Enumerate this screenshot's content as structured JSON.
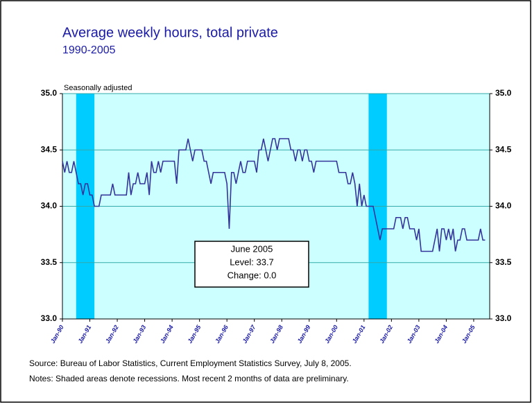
{
  "chart_data": {
    "type": "line",
    "title": "Average weekly hours, total private",
    "subtitle": "1990-2005",
    "y_label": "Seasonally adjusted",
    "categories": [
      "Jan-90",
      null,
      null,
      null,
      null,
      null,
      null,
      null,
      null,
      null,
      null,
      null,
      "Jan-91",
      null,
      null,
      null,
      null,
      null,
      null,
      null,
      null,
      null,
      null,
      null,
      "Jan-92",
      null,
      null,
      null,
      null,
      null,
      null,
      null,
      null,
      null,
      null,
      null,
      "Jan-93",
      null,
      null,
      null,
      null,
      null,
      null,
      null,
      null,
      null,
      null,
      null,
      "Jan-94",
      null,
      null,
      null,
      null,
      null,
      null,
      null,
      null,
      null,
      null,
      null,
      "Jan-95",
      null,
      null,
      null,
      null,
      null,
      null,
      null,
      null,
      null,
      null,
      null,
      "Jan-96",
      null,
      null,
      null,
      null,
      null,
      null,
      null,
      null,
      null,
      null,
      null,
      "Jan-97",
      null,
      null,
      null,
      null,
      null,
      null,
      null,
      null,
      null,
      null,
      null,
      "Jan-98",
      null,
      null,
      null,
      null,
      null,
      null,
      null,
      null,
      null,
      null,
      null,
      "Jan-99",
      null,
      null,
      null,
      null,
      null,
      null,
      null,
      null,
      null,
      null,
      null,
      "Jan-00",
      null,
      null,
      null,
      null,
      null,
      null,
      null,
      null,
      null,
      null,
      null,
      "Jan-01",
      null,
      null,
      null,
      null,
      null,
      null,
      null,
      null,
      null,
      null,
      null,
      "Jan-02",
      null,
      null,
      null,
      null,
      null,
      null,
      null,
      null,
      null,
      null,
      null,
      "Jan-03",
      null,
      null,
      null,
      null,
      null,
      null,
      null,
      null,
      null,
      null,
      null,
      "Jan-04",
      null,
      null,
      null,
      null,
      null,
      null,
      null,
      null,
      null,
      null,
      null,
      "Jan-05",
      null,
      null,
      null,
      null,
      null
    ],
    "series": [
      {
        "color": "#333399",
        "values": [
          34.4,
          34.3,
          34.4,
          34.3,
          34.3,
          34.4,
          34.3,
          34.2,
          34.2,
          34.1,
          34.2,
          34.2,
          34.1,
          34.1,
          34.0,
          34.0,
          34.0,
          34.1,
          34.1,
          34.1,
          34.1,
          34.1,
          34.2,
          34.1,
          34.1,
          34.1,
          34.1,
          34.1,
          34.1,
          34.3,
          34.1,
          34.2,
          34.2,
          34.3,
          34.2,
          34.2,
          34.2,
          34.3,
          34.1,
          34.4,
          34.3,
          34.3,
          34.4,
          34.3,
          34.4,
          34.4,
          34.4,
          34.4,
          34.4,
          34.4,
          34.2,
          34.5,
          34.5,
          34.5,
          34.5,
          34.6,
          34.5,
          34.4,
          34.5,
          34.5,
          34.5,
          34.5,
          34.4,
          34.4,
          34.3,
          34.2,
          34.3,
          34.3,
          34.3,
          34.3,
          34.3,
          34.3,
          34.2,
          33.8,
          34.3,
          34.3,
          34.2,
          34.3,
          34.4,
          34.3,
          34.3,
          34.4,
          34.4,
          34.4,
          34.4,
          34.3,
          34.5,
          34.5,
          34.6,
          34.5,
          34.4,
          34.5,
          34.6,
          34.6,
          34.5,
          34.6,
          34.6,
          34.6,
          34.6,
          34.6,
          34.5,
          34.5,
          34.4,
          34.5,
          34.5,
          34.4,
          34.5,
          34.5,
          34.4,
          34.4,
          34.3,
          34.4,
          34.4,
          34.4,
          34.4,
          34.4,
          34.4,
          34.4,
          34.4,
          34.4,
          34.4,
          34.3,
          34.3,
          34.3,
          34.3,
          34.2,
          34.2,
          34.3,
          34.2,
          34.0,
          34.2,
          34.0,
          34.1,
          34.0,
          34.0,
          34.0,
          34.0,
          33.9,
          33.8,
          33.7,
          33.8,
          33.8,
          33.8,
          33.8,
          33.8,
          33.8,
          33.9,
          33.9,
          33.9,
          33.8,
          33.9,
          33.9,
          33.8,
          33.8,
          33.8,
          33.7,
          33.8,
          33.6,
          33.6,
          33.6,
          33.6,
          33.6,
          33.6,
          33.7,
          33.8,
          33.6,
          33.8,
          33.8,
          33.7,
          33.8,
          33.7,
          33.8,
          33.6,
          33.7,
          33.7,
          33.8,
          33.8,
          33.7,
          33.7,
          33.7,
          33.7,
          33.7,
          33.7,
          33.8,
          33.7,
          33.7
        ]
      }
    ],
    "ylim": [
      33,
      35
    ],
    "yticks": [
      {
        "value": 33,
        "label": "33.0"
      },
      {
        "value": 33.5,
        "label": "33.5"
      },
      {
        "value": 34,
        "label": "34.0"
      },
      {
        "value": 34.5,
        "label": "34.5"
      },
      {
        "value": 35,
        "label": "35.0"
      }
    ],
    "y2lim": [
      33,
      35
    ],
    "y2ticks": [
      {
        "value": 33,
        "label": "33.0"
      },
      {
        "value": 33.5,
        "label": "33.5"
      },
      {
        "value": 34,
        "label": "34.0"
      },
      {
        "value": 34.5,
        "label": "34.5"
      },
      {
        "value": 35,
        "label": "35.0"
      }
    ],
    "grid": true,
    "shaded_ranges": [
      [
        6,
        14
      ],
      [
        134,
        142
      ]
    ],
    "annotation": [
      "June 2005",
      "Level: 33.7",
      "Change: 0.0"
    ],
    "source": "Source:  Bureau of Labor Statistics, Current Employment Statistics Survey, July 8, 2005.",
    "notes": "Notes:  Shaded areas denote recessions. Most recent 2 months of data are preliminary."
  }
}
